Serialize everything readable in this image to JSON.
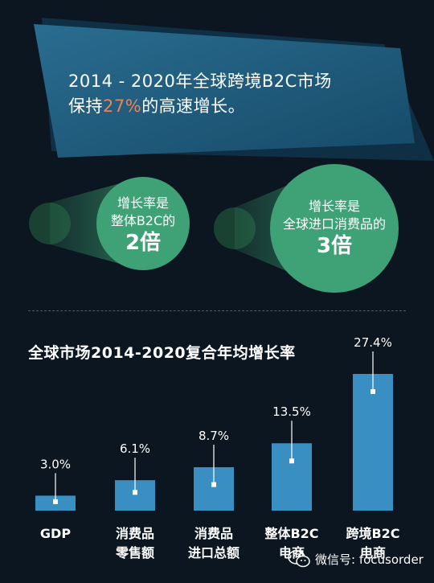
{
  "headline": {
    "line1": "2014 - 2020年全球跨境B2C市场",
    "line2_pre": "保持",
    "line2_highlight": "27%",
    "line2_post": "的高速增长。"
  },
  "circles": [
    {
      "line1": "增长率是",
      "line2": "整体B2C的",
      "big": "2倍"
    },
    {
      "line1": "增长率是",
      "line2": "全球进口消费品的",
      "big": "3倍"
    }
  ],
  "chart_data": {
    "type": "bar",
    "title": "全球市场2014-2020复合年均增长率",
    "categories": [
      [
        "GDP"
      ],
      [
        "消费品",
        "零售额"
      ],
      [
        "消费品",
        "进口总额"
      ],
      [
        "整体B2C",
        "电商"
      ],
      [
        "跨境B2C",
        "电商"
      ]
    ],
    "values": [
      3.0,
      6.1,
      8.7,
      13.5,
      27.4
    ],
    "value_labels": [
      "3.0%",
      "6.1%",
      "8.7%",
      "13.5%",
      "27.4%"
    ],
    "bar_color": "#3a8fc2"
  },
  "watermark": {
    "icon": "wechat-icon",
    "text": "微信号: focusorder"
  },
  "colors": {
    "background": "#0b1620",
    "banner": "#1d5a7c",
    "highlight": "#e8845a",
    "circle": "#3fa277"
  }
}
